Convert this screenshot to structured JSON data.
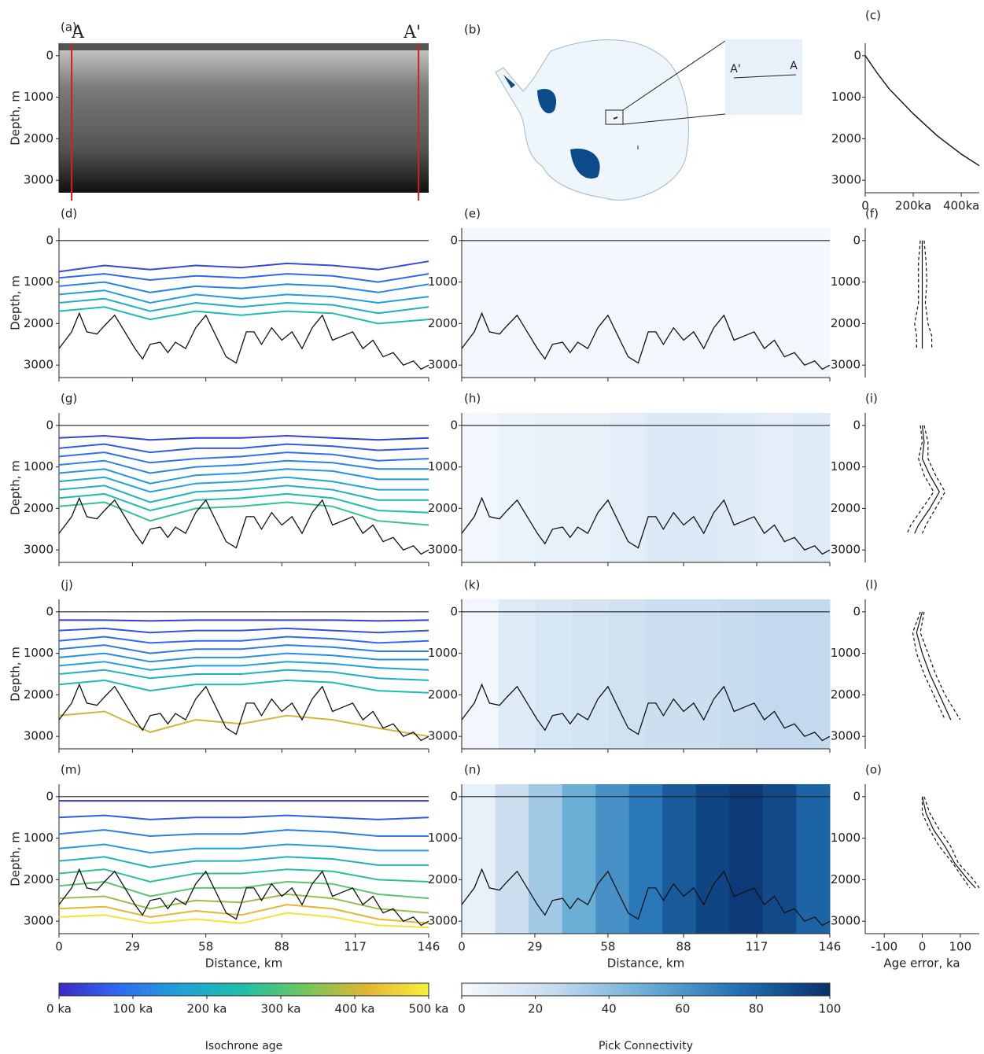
{
  "profile": {
    "x": [
      0,
      5,
      8,
      11,
      15,
      18,
      22,
      26,
      30,
      33,
      36,
      40,
      43,
      46,
      50,
      54,
      58,
      62,
      66,
      70,
      74,
      77,
      80,
      84,
      88,
      92,
      96,
      100,
      104,
      108,
      112,
      116,
      120,
      124,
      128,
      132,
      136,
      140,
      143,
      146
    ],
    "bed": [
      2600,
      2200,
      1750,
      2200,
      2250,
      2050,
      1800,
      2200,
      2600,
      2850,
      2500,
      2450,
      2700,
      2450,
      2600,
      2100,
      1800,
      2300,
      2800,
      2950,
      2200,
      2200,
      2500,
      2100,
      2400,
      2200,
      2600,
      2100,
      1800,
      2400,
      2300,
      2200,
      2600,
      2400,
      2800,
      2700,
      3000,
      2900,
      3100,
      3000
    ],
    "surface": 0,
    "layer_x": [
      0,
      18,
      36,
      54,
      72,
      90,
      108,
      126,
      146
    ],
    "xlim": [
      0,
      146
    ],
    "xticks": [
      0,
      29,
      58,
      88,
      117,
      146
    ],
    "ylim": [
      -300,
      3300
    ],
    "yticks": [
      0,
      1000,
      2000,
      3000
    ],
    "ylabel": "Depth, m",
    "xlabel": "Distance, km"
  },
  "chart_data": [
    {
      "type": "radargram",
      "label": "(a)",
      "markers": {
        "labels": [
          "A",
          "A'"
        ],
        "x": [
          5,
          142
        ]
      }
    },
    {
      "type": "map",
      "label": "(b)",
      "inset_labels": [
        "A'",
        "A"
      ]
    },
    {
      "type": "line",
      "label": "(c)",
      "x": [
        0,
        50,
        100,
        200,
        300,
        400,
        475
      ],
      "y": [
        0,
        420,
        800,
        1400,
        1930,
        2370,
        2650
      ],
      "xlim": [
        0,
        475
      ],
      "xticks": [
        0,
        {
          "value": 200,
          "label": "200ka"
        },
        {
          "value": 400,
          "label": "400ka"
        }
      ]
    },
    {
      "type": "isochrones",
      "label": "(d)",
      "isochrones": [
        {
          "age": 40,
          "depth": [
            750,
            600,
            700,
            600,
            650,
            550,
            600,
            700,
            500
          ]
        },
        {
          "age": 80,
          "depth": [
            900,
            800,
            950,
            850,
            900,
            800,
            850,
            1000,
            800
          ]
        },
        {
          "age": 120,
          "depth": [
            1100,
            1000,
            1250,
            1100,
            1150,
            1050,
            1100,
            1250,
            1050
          ]
        },
        {
          "age": 160,
          "depth": [
            1300,
            1200,
            1500,
            1300,
            1400,
            1300,
            1350,
            1500,
            1350
          ]
        },
        {
          "age": 200,
          "depth": [
            1500,
            1400,
            1700,
            1500,
            1600,
            1500,
            1550,
            1750,
            1600
          ]
        },
        {
          "age": 240,
          "depth": [
            1700,
            1600,
            1900,
            1700,
            1800,
            1700,
            1750,
            2000,
            1900
          ]
        }
      ]
    },
    {
      "type": "isochrones",
      "label": "(g)",
      "isochrones": [
        {
          "age": 30,
          "depth": [
            300,
            250,
            350,
            300,
            300,
            250,
            300,
            350,
            300
          ]
        },
        {
          "age": 60,
          "depth": [
            550,
            450,
            650,
            550,
            550,
            450,
            500,
            600,
            550
          ]
        },
        {
          "age": 90,
          "depth": [
            750,
            650,
            900,
            800,
            750,
            650,
            700,
            850,
            800
          ]
        },
        {
          "age": 120,
          "depth": [
            950,
            850,
            1150,
            1000,
            950,
            850,
            900,
            1050,
            1050
          ]
        },
        {
          "age": 150,
          "depth": [
            1150,
            1050,
            1400,
            1200,
            1150,
            1050,
            1100,
            1300,
            1300
          ]
        },
        {
          "age": 180,
          "depth": [
            1350,
            1250,
            1600,
            1400,
            1350,
            1250,
            1350,
            1550,
            1550
          ]
        },
        {
          "age": 210,
          "depth": [
            1550,
            1450,
            1850,
            1600,
            1550,
            1450,
            1550,
            1800,
            1800
          ]
        },
        {
          "age": 240,
          "depth": [
            1750,
            1650,
            2050,
            1800,
            1750,
            1650,
            1750,
            2050,
            2100
          ]
        },
        {
          "age": 270,
          "depth": [
            1950,
            1850,
            2300,
            2000,
            1950,
            1850,
            1950,
            2300,
            2400
          ]
        }
      ]
    },
    {
      "type": "isochrones",
      "label": "(j)",
      "isochrones": [
        {
          "age": 20,
          "depth": [
            200,
            200,
            220,
            200,
            200,
            200,
            200,
            220,
            200
          ]
        },
        {
          "age": 50,
          "depth": [
            450,
            400,
            500,
            450,
            450,
            400,
            450,
            500,
            450
          ]
        },
        {
          "age": 80,
          "depth": [
            700,
            600,
            750,
            700,
            700,
            600,
            650,
            750,
            700
          ]
        },
        {
          "age": 110,
          "depth": [
            900,
            800,
            1000,
            900,
            900,
            800,
            850,
            950,
            950
          ]
        },
        {
          "age": 140,
          "depth": [
            1100,
            1000,
            1200,
            1100,
            1100,
            1000,
            1050,
            1150,
            1150
          ]
        },
        {
          "age": 170,
          "depth": [
            1300,
            1200,
            1400,
            1300,
            1300,
            1200,
            1250,
            1350,
            1400
          ]
        },
        {
          "age": 200,
          "depth": [
            1500,
            1400,
            1600,
            1500,
            1500,
            1400,
            1450,
            1600,
            1650
          ]
        },
        {
          "age": 240,
          "depth": [
            1750,
            1650,
            1900,
            1750,
            1750,
            1650,
            1700,
            1900,
            1950
          ]
        },
        {
          "age": 400,
          "depth": [
            2500,
            2400,
            2900,
            2600,
            2700,
            2500,
            2600,
            2800,
            3000
          ]
        }
      ]
    },
    {
      "type": "isochrones",
      "label": "(m)",
      "isochrones": [
        {
          "age": 10,
          "depth": [
            100,
            100,
            100,
            100,
            100,
            100,
            100,
            100,
            100
          ]
        },
        {
          "age": 60,
          "depth": [
            500,
            450,
            550,
            500,
            500,
            450,
            500,
            550,
            500
          ]
        },
        {
          "age": 110,
          "depth": [
            900,
            800,
            950,
            900,
            900,
            800,
            850,
            950,
            950
          ]
        },
        {
          "age": 160,
          "depth": [
            1250,
            1150,
            1350,
            1250,
            1250,
            1150,
            1200,
            1300,
            1300
          ]
        },
        {
          "age": 210,
          "depth": [
            1550,
            1450,
            1700,
            1550,
            1550,
            1450,
            1500,
            1650,
            1650
          ]
        },
        {
          "age": 260,
          "depth": [
            1850,
            1750,
            2050,
            1850,
            1850,
            1750,
            1800,
            2000,
            2050
          ]
        },
        {
          "age": 310,
          "depth": [
            2150,
            2050,
            2400,
            2200,
            2200,
            2050,
            2100,
            2350,
            2450
          ]
        },
        {
          "age": 360,
          "depth": [
            2450,
            2400,
            2700,
            2500,
            2550,
            2350,
            2450,
            2700,
            2800
          ]
        },
        {
          "age": 420,
          "depth": [
            2700,
            2650,
            2900,
            2750,
            2850,
            2600,
            2700,
            2950,
            3050
          ]
        },
        {
          "age": 480,
          "depth": [
            2900,
            2850,
            3050,
            2950,
            3050,
            2800,
            2900,
            3100,
            3150
          ]
        }
      ]
    },
    {
      "type": "connectivity",
      "label": "(e)",
      "values": [
        2,
        2,
        2,
        2,
        2,
        2,
        2,
        2
      ]
    },
    {
      "type": "connectivity",
      "label": "(h)",
      "values": [
        3,
        6,
        8,
        8,
        10,
        14,
        14,
        12,
        10,
        12
      ]
    },
    {
      "type": "connectivity",
      "label": "(k)",
      "values": [
        3,
        12,
        16,
        18,
        20,
        22,
        22,
        24,
        26,
        26
      ]
    },
    {
      "type": "connectivity",
      "label": "(n)",
      "values": [
        8,
        22,
        35,
        50,
        62,
        72,
        84,
        92,
        96,
        90,
        80
      ]
    },
    {
      "type": "error",
      "label": "(f)",
      "depth": [
        0,
        500,
        1000,
        1500,
        2000,
        2300,
        2600
      ],
      "mean": [
        0,
        0,
        0,
        0,
        0,
        0,
        0
      ],
      "lower": [
        -5,
        -10,
        -10,
        -10,
        -20,
        -15,
        -15
      ],
      "upper": [
        5,
        10,
        12,
        8,
        15,
        25,
        25
      ]
    },
    {
      "type": "error",
      "label": "(i)",
      "depth": [
        0,
        400,
        800,
        1200,
        1600,
        2000,
        2400,
        2600
      ],
      "mean": [
        0,
        5,
        0,
        20,
        45,
        20,
        -10,
        -20
      ],
      "lower": [
        -5,
        0,
        -10,
        5,
        30,
        0,
        -30,
        -40
      ],
      "upper": [
        5,
        15,
        15,
        35,
        60,
        35,
        10,
        0
      ]
    },
    {
      "type": "error",
      "label": "(l)",
      "depth": [
        0,
        500,
        1000,
        1500,
        2000,
        2600
      ],
      "mean": [
        0,
        -15,
        0,
        20,
        45,
        75
      ],
      "lower": [
        -5,
        -25,
        -15,
        5,
        30,
        60
      ],
      "upper": [
        5,
        -5,
        15,
        35,
        60,
        100
      ]
    },
    {
      "type": "error",
      "label": "(o)",
      "depth": [
        0,
        400,
        800,
        1200,
        1600,
        2000,
        2200
      ],
      "mean": [
        0,
        10,
        30,
        60,
        85,
        120,
        140
      ],
      "lower": [
        0,
        0,
        20,
        45,
        80,
        110,
        125
      ],
      "upper": [
        5,
        20,
        45,
        75,
        95,
        135,
        150
      ],
      "xlim": [
        -150,
        150
      ],
      "xticks": [
        -100,
        0,
        100
      ],
      "xlabel": "Age error, ka"
    },
    {
      "type": "colorbar",
      "title": "Isochrone age",
      "xlim": [
        0,
        500
      ],
      "colors": [
        "#3a2bc4",
        "#2f6cf0",
        "#1ea2d8",
        "#1fbfa8",
        "#72c65c",
        "#e4b433",
        "#f5f23a"
      ],
      "xticks": [
        {
          "value": 0,
          "label": "0 ka"
        },
        {
          "value": 100,
          "label": "100 ka"
        },
        {
          "value": 200,
          "label": "200 ka"
        },
        {
          "value": 300,
          "label": "300 ka"
        },
        {
          "value": 400,
          "label": "400 ka"
        },
        {
          "value": 500,
          "label": "500 ka"
        }
      ]
    },
    {
      "type": "colorbar",
      "title": "Pick Connectivity",
      "xlim": [
        0,
        100
      ],
      "colors": [
        "#f7fbff",
        "#c6dbef",
        "#6baed6",
        "#2171b5",
        "#08306b"
      ],
      "xticks": [
        0,
        20,
        40,
        60,
        80,
        100
      ]
    }
  ]
}
